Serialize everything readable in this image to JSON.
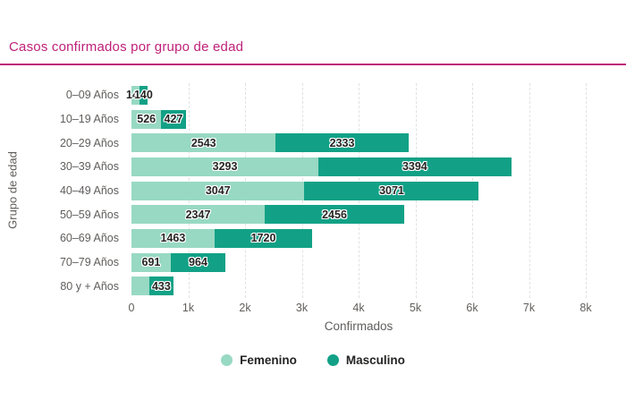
{
  "header": {
    "title": "Casos confirmados por grupo de edad"
  },
  "theme": {
    "accent": "#BE2179",
    "femenino_color": "#98D9C3",
    "masculino_color": "#12A186",
    "axis_text_color": "#605E5C",
    "value_label_color": "#252423",
    "gridline_color": "#E1E1E1"
  },
  "chart_data": {
    "type": "bar",
    "orientation": "horizontal",
    "stacked": true,
    "title": "Casos confirmados por grupo de edad",
    "xlabel": "Confirmados",
    "ylabel": "Grupo de edad",
    "xlim": [
      0,
      8000
    ],
    "grid": "vertical dashed gridlines at every 1k",
    "legend_position": "bottom",
    "x_ticks": [
      {
        "value": 0,
        "label": "0"
      },
      {
        "value": 1000,
        "label": "1k"
      },
      {
        "value": 2000,
        "label": "2k"
      },
      {
        "value": 3000,
        "label": "3k"
      },
      {
        "value": 4000,
        "label": "4k"
      },
      {
        "value": 5000,
        "label": "5k"
      },
      {
        "value": 6000,
        "label": "6k"
      },
      {
        "value": 7000,
        "label": "7k"
      },
      {
        "value": 8000,
        "label": "8k"
      }
    ],
    "categories": [
      "0–09 Años",
      "10–19 Años",
      "20–29 Años",
      "30–39 Años",
      "40–49 Años",
      "50–59 Años",
      "60–69 Años",
      "70–79 Años",
      "80 y + Años"
    ],
    "series": [
      {
        "name": "Femenino",
        "color": "#98D9C3",
        "values": [
          141,
          526,
          2543,
          3293,
          3047,
          2347,
          1463,
          691,
          310
        ],
        "labels": [
          "141",
          "526",
          "2543",
          "3293",
          "3047",
          "2347",
          "1463",
          "691",
          ""
        ]
      },
      {
        "name": "Masculino",
        "color": "#12A186",
        "values": [
          140,
          427,
          2333,
          3394,
          3071,
          2456,
          1720,
          964,
          433
        ],
        "labels": [
          "140",
          "427",
          "2333",
          "3394",
          "3071",
          "2456",
          "1720",
          "964",
          "433"
        ]
      }
    ]
  }
}
